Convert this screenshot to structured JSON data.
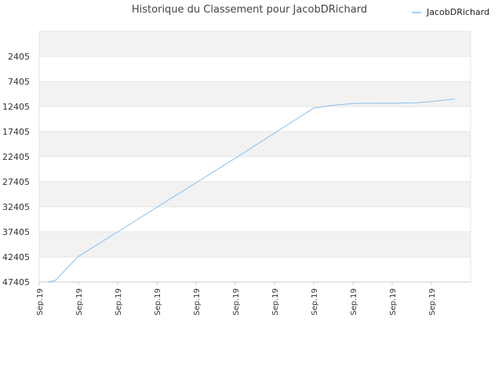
{
  "chart_data": {
    "type": "line",
    "title": "Historique du Classement pour JacobDRichard",
    "xlabel": "",
    "ylabel": "",
    "y_inverted": true,
    "ylim": [
      47405,
      -2595
    ],
    "yticks": [
      2405,
      7405,
      12405,
      17405,
      22405,
      27405,
      32405,
      37405,
      42405,
      47405
    ],
    "x_tick_labels": [
      "Sep.19",
      "Sep.19",
      "Sep.19",
      "Sep.19",
      "Sep.19",
      "Sep.19",
      "Sep.19",
      "Sep.19",
      "Sep.19",
      "Sep.19",
      "Sep.19",
      "Sep.19"
    ],
    "legend": {
      "position": "top-right"
    },
    "grid": {
      "horizontal": true,
      "alternating_bands": true
    },
    "colors": {
      "line": "#88c0f0",
      "band": "#f2f2f2",
      "grid": "#e6e6e6"
    },
    "series": [
      {
        "name": "JacobDRichard",
        "x": [
          0.2,
          0.4,
          1.0,
          2.0,
          3.0,
          4.0,
          5.0,
          6.0,
          6.5,
          7.0,
          7.5,
          8.0,
          8.5,
          9.0,
          9.6,
          10.0,
          10.6
        ],
        "values": [
          47400,
          47150,
          42300,
          37400,
          32500,
          27600,
          22700,
          17700,
          15200,
          12700,
          12150,
          11800,
          11750,
          11750,
          11650,
          11400,
          10900
        ]
      }
    ]
  }
}
